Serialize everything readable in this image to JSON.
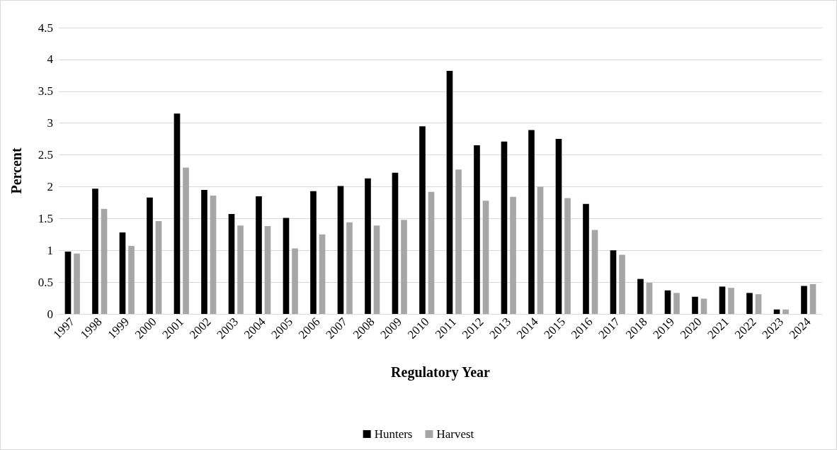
{
  "chart_data": {
    "type": "bar",
    "xlabel": "Regulatory Year",
    "ylabel": "Percent",
    "categories": [
      "1997",
      "1998",
      "1999",
      "2000",
      "2001",
      "2002",
      "2003",
      "2004",
      "2005",
      "2006",
      "2007",
      "2008",
      "2009",
      "2010",
      "2011",
      "2012",
      "2013",
      "2014",
      "2015",
      "2016",
      "2017",
      "2018",
      "2019",
      "2020",
      "2021",
      "2022",
      "2023",
      "2024"
    ],
    "series": [
      {
        "name": "Hunters",
        "color": "#000000",
        "values": [
          0.98,
          1.97,
          1.28,
          1.83,
          3.15,
          1.95,
          1.57,
          1.85,
          1.51,
          1.93,
          2.01,
          2.13,
          2.22,
          2.95,
          3.82,
          2.65,
          2.71,
          2.89,
          2.75,
          1.73,
          1.0,
          0.55,
          0.37,
          0.27,
          0.43,
          0.33,
          0.07,
          0.44
        ]
      },
      {
        "name": "Harvest",
        "color": "#a6a6a6",
        "values": [
          0.95,
          1.65,
          1.07,
          1.46,
          2.3,
          1.86,
          1.39,
          1.38,
          1.03,
          1.25,
          1.44,
          1.39,
          1.48,
          1.92,
          2.27,
          1.78,
          1.84,
          2.0,
          1.82,
          1.32,
          0.93,
          0.49,
          0.33,
          0.24,
          0.41,
          0.31,
          0.07,
          0.47
        ]
      }
    ],
    "ylim": [
      0,
      4.5
    ],
    "yticks": [
      0,
      0.5,
      1,
      1.5,
      2,
      2.5,
      3,
      3.5,
      4,
      4.5
    ],
    "grid": "y",
    "legend": "bottom"
  }
}
